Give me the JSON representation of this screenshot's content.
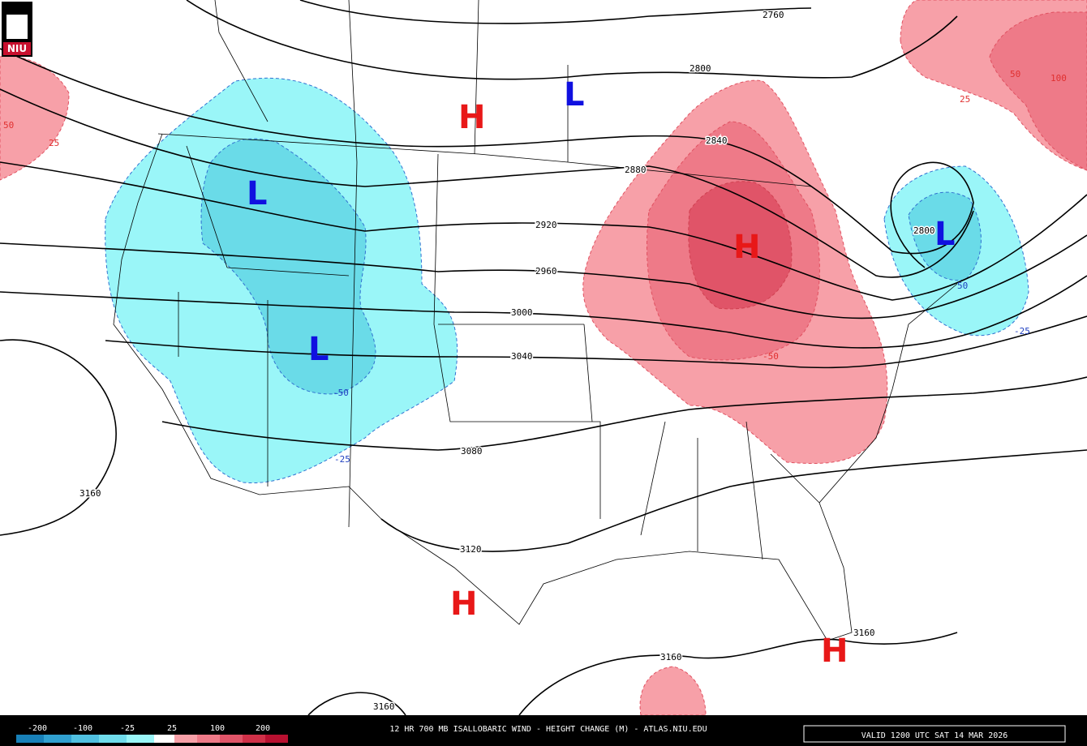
{
  "logo": "NIU",
  "title": "12 HR 700 MB ISALLOBARIC WIND - HEIGHT CHANGE (M) - ATLAS.NIU.EDU",
  "valid": "VALID 1200 UTC SAT 14 MAR 2026",
  "colorbar_labels": [
    -200,
    -100,
    -25,
    25,
    100,
    200
  ],
  "contour_labels": [
    2760,
    2800,
    2840,
    2880,
    2920,
    2960,
    3000,
    3040,
    3080,
    3120,
    3160,
    3160,
    3160,
    3160,
    2800
  ],
  "change_labels": [
    25,
    50,
    25,
    50,
    100,
    -50,
    -25,
    -50,
    -25,
    50
  ],
  "centers": [
    "H",
    "L",
    "L",
    "L",
    "H",
    "L",
    "H",
    "H"
  ]
}
